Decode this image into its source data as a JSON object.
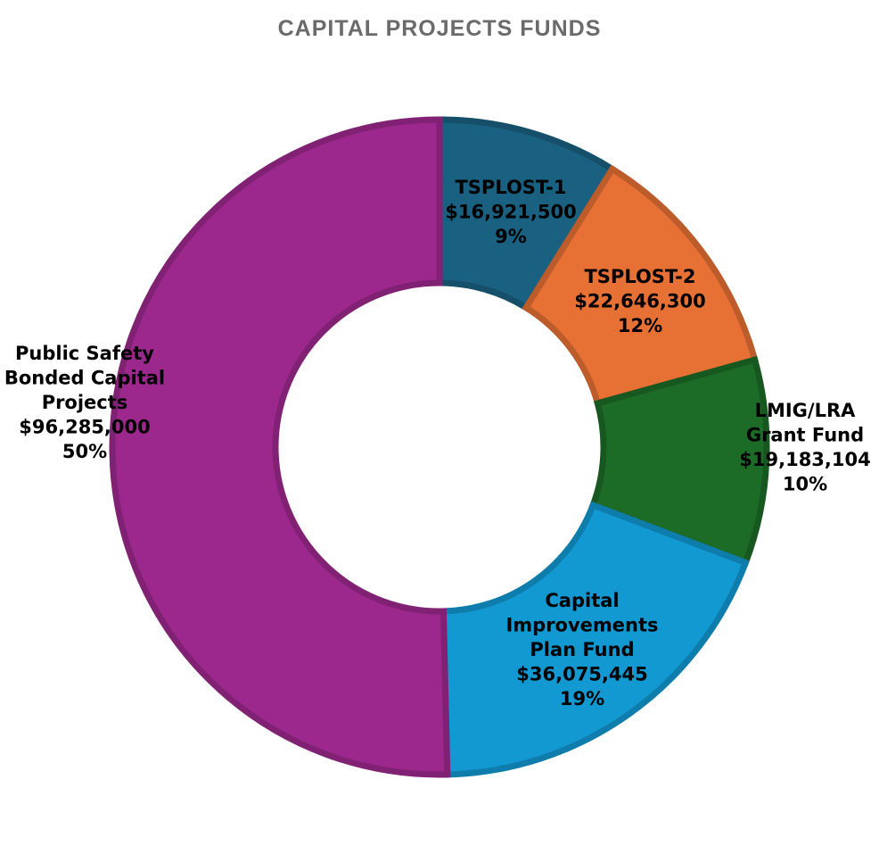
{
  "chart_data": {
    "type": "pie",
    "variant": "donut",
    "title": "CAPITAL PROJECTS FUNDS",
    "categories": [
      "TSPLOST-1",
      "TSPLOST-2",
      "LMIG/LRA Grant Fund",
      "Capital Improvements Plan Fund",
      "Public Safety Bonded Capital Projects"
    ],
    "values": [
      16921500,
      22646300,
      19183104,
      36075445,
      96285000
    ],
    "percentages": [
      9,
      12,
      10,
      19,
      50
    ],
    "colors": [
      "#1a6080",
      "#e77035",
      "#1c6b27",
      "#1299d2",
      "#9c288d"
    ],
    "labels": [
      [
        "TSPLOST-1",
        "$16,921,500",
        "9%"
      ],
      [
        "TSPLOST-2",
        "$22,646,300",
        "12%"
      ],
      [
        "LMIG/LRA",
        "Grant Fund",
        "$19,183,104",
        "10%"
      ],
      [
        "Capital",
        "Improvements",
        "Plan Fund",
        "$36,075,445",
        "19%"
      ],
      [
        "Public Safety",
        "Bonded Capital",
        "Projects",
        "$96,285,000",
        "50%"
      ]
    ],
    "legend": "none",
    "start_angle_deg": 0,
    "direction": "clockwise"
  }
}
